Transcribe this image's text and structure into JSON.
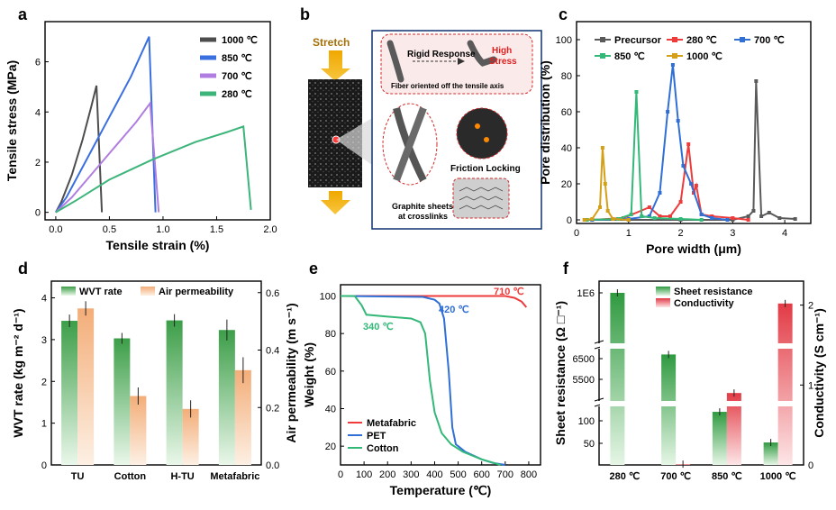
{
  "panels": {
    "a": "a",
    "b": "b",
    "c": "c",
    "d": "d",
    "e": "e",
    "f": "f"
  },
  "colors": {
    "c1000": "#4d4d4d",
    "c850": "#3a6fe0",
    "c700": "#b07ee0",
    "c280": "#3db57a",
    "prec": "#5a5a5a",
    "r280": "#ee3b3b",
    "b700": "#2f6fd6",
    "g850": "#33b878",
    "y1000": "#d4a017",
    "wvt": "#4aad56",
    "air": "#f5b88a",
    "sheet": "#3aa84a",
    "cond": "#e8414a"
  },
  "chart_data": [
    {
      "panel": "a",
      "type": "line",
      "xlabel": "Tensile strain (%)",
      "ylabel": "Tensile stress (MPa)",
      "xlim": [
        -0.1,
        2.0
      ],
      "ylim": [
        -0.3,
        7.6
      ],
      "xticks": [
        "0.0",
        "0.5",
        "1.0",
        "1.5",
        "2.0"
      ],
      "yticks": [
        "0",
        "2",
        "4",
        "6"
      ],
      "series": [
        {
          "name": "1000 ℃",
          "color": "#4d4d4d",
          "points": [
            [
              0,
              0
            ],
            [
              0.05,
              0.4
            ],
            [
              0.15,
              1.5
            ],
            [
              0.25,
              2.9
            ],
            [
              0.33,
              4.2
            ],
            [
              0.38,
              5.05
            ],
            [
              0.43,
              0
            ]
          ]
        },
        {
          "name": "850 ℃",
          "color": "#3a6fe0",
          "points": [
            [
              0,
              0
            ],
            [
              0.1,
              0.6
            ],
            [
              0.3,
              2.2
            ],
            [
              0.5,
              3.8
            ],
            [
              0.7,
              5.4
            ],
            [
              0.87,
              7.0
            ],
            [
              0.93,
              0
            ]
          ]
        },
        {
          "name": "700 ℃",
          "color": "#b07ee0",
          "points": [
            [
              0,
              0
            ],
            [
              0.15,
              0.6
            ],
            [
              0.35,
              1.6
            ],
            [
              0.55,
              2.6
            ],
            [
              0.75,
              3.6
            ],
            [
              0.88,
              4.35
            ],
            [
              0.96,
              0
            ]
          ]
        },
        {
          "name": "280 ℃",
          "color": "#3db57a",
          "points": [
            [
              0,
              0
            ],
            [
              0.2,
              0.5
            ],
            [
              0.5,
              1.3
            ],
            [
              0.9,
              2.1
            ],
            [
              1.3,
              2.8
            ],
            [
              1.6,
              3.2
            ],
            [
              1.75,
              3.42
            ],
            [
              1.82,
              0.1
            ]
          ]
        }
      ]
    },
    {
      "panel": "c",
      "type": "line",
      "xlabel": "Pore width (μm)",
      "ylabel": "Pore distribution (%)",
      "xlim": [
        0,
        4.5
      ],
      "ylim": [
        -2,
        110
      ],
      "xticks": [
        "0",
        "1",
        "2",
        "3",
        "4"
      ],
      "yticks": [
        "0",
        "20",
        "40",
        "60",
        "80",
        "100"
      ],
      "series": [
        {
          "name": "Precursor",
          "color": "#5a5a5a",
          "points": [
            [
              0.2,
              0
            ],
            [
              1,
              0
            ],
            [
              2,
              0
            ],
            [
              3,
              0
            ],
            [
              3.3,
              2
            ],
            [
              3.4,
              5
            ],
            [
              3.45,
              77
            ],
            [
              3.55,
              2
            ],
            [
              3.7,
              4
            ],
            [
              3.9,
              1
            ],
            [
              4.2,
              0.5
            ]
          ]
        },
        {
          "name": "280 ℃",
          "color": "#ee3b3b",
          "points": [
            [
              0.3,
              0
            ],
            [
              0.9,
              1
            ],
            [
              1.4,
              7
            ],
            [
              1.6,
              2
            ],
            [
              1.8,
              2
            ],
            [
              2.0,
              10
            ],
            [
              2.15,
              42
            ],
            [
              2.25,
              15
            ],
            [
              2.3,
              19
            ],
            [
              2.4,
              3
            ],
            [
              2.6,
              2
            ],
            [
              3.0,
              1
            ],
            [
              3.3,
              0
            ]
          ]
        },
        {
          "name": "700 ℃",
          "color": "#2f6fd6",
          "points": [
            [
              0.3,
              0
            ],
            [
              1.0,
              0.5
            ],
            [
              1.4,
              2
            ],
            [
              1.6,
              15
            ],
            [
              1.75,
              60
            ],
            [
              1.85,
              86
            ],
            [
              1.95,
              55
            ],
            [
              2.05,
              30
            ],
            [
              2.2,
              20
            ],
            [
              2.4,
              3
            ],
            [
              2.6,
              1
            ],
            [
              2.9,
              0
            ]
          ]
        },
        {
          "name": "850 ℃",
          "color": "#33b878",
          "points": [
            [
              0.2,
              0
            ],
            [
              0.8,
              0.5
            ],
            [
              1.05,
              3
            ],
            [
              1.15,
              71
            ],
            [
              1.25,
              2
            ],
            [
              1.5,
              1
            ],
            [
              2.0,
              0.5
            ],
            [
              2.4,
              0
            ]
          ]
        },
        {
          "name": "1000 ℃",
          "color": "#d4a017",
          "points": [
            [
              0.15,
              0
            ],
            [
              0.3,
              0.5
            ],
            [
              0.45,
              7
            ],
            [
              0.5,
              40
            ],
            [
              0.55,
              20
            ],
            [
              0.6,
              5
            ],
            [
              0.7,
              0.5
            ],
            [
              1.0,
              0
            ]
          ]
        }
      ]
    },
    {
      "panel": "d",
      "type": "bar",
      "categories": [
        "TU",
        "Cotton",
        "H-TU",
        "Metafabric"
      ],
      "ylabel": "WVT rate (kg m⁻² d⁻¹)",
      "y2label": "Air permeability (m s⁻¹)",
      "ylim": [
        0,
        4.4
      ],
      "y2lim": [
        0,
        0.64
      ],
      "yticks": [
        "0",
        "1",
        "2",
        "3",
        "4"
      ],
      "y2ticks": [
        "0.0",
        "0.2",
        "0.4",
        "0.6"
      ],
      "series": [
        {
          "name": "WVT rate",
          "color": "#4aad56",
          "axis": "left",
          "values": [
            3.45,
            3.03,
            3.46,
            3.23
          ],
          "err": [
            0.15,
            0.13,
            0.15,
            0.25
          ]
        },
        {
          "name": "Air permeability",
          "color": "#f5b88a",
          "axis": "right",
          "values": [
            0.545,
            0.24,
            0.195,
            0.33
          ],
          "err": [
            0.025,
            0.03,
            0.03,
            0.045
          ]
        }
      ]
    },
    {
      "panel": "e",
      "type": "line",
      "xlabel": "Temperature (℃)",
      "ylabel": "Weight (%)",
      "xlim": [
        0,
        850
      ],
      "ylim": [
        10,
        106
      ],
      "xticks": [
        "0",
        "100",
        "200",
        "300",
        "400",
        "500",
        "600",
        "700",
        "800"
      ],
      "yticks": [
        "20",
        "40",
        "60",
        "80",
        "100"
      ],
      "annotations": [
        "710 ℃",
        "420 ℃",
        "340 ℃"
      ],
      "series": [
        {
          "name": "Metafabric",
          "color": "#ee3b3b",
          "points": [
            [
              0,
              100
            ],
            [
              700,
              100
            ],
            [
              740,
              99
            ],
            [
              770,
              97
            ],
            [
              790,
              94
            ]
          ]
        },
        {
          "name": "PET",
          "color": "#2f6fd6",
          "points": [
            [
              0,
              100
            ],
            [
              350,
              99.5
            ],
            [
              400,
              98
            ],
            [
              420,
              96
            ],
            [
              440,
              88
            ],
            [
              460,
              60
            ],
            [
              475,
              30
            ],
            [
              490,
              21
            ],
            [
              530,
              17
            ],
            [
              600,
              13
            ],
            [
              650,
              11
            ],
            [
              700,
              10
            ]
          ]
        },
        {
          "name": "Cotton",
          "color": "#33b878",
          "points": [
            [
              0,
              100
            ],
            [
              60,
              100
            ],
            [
              90,
              95
            ],
            [
              110,
              90
            ],
            [
              200,
              89
            ],
            [
              300,
              88
            ],
            [
              340,
              86
            ],
            [
              360,
              80
            ],
            [
              380,
              55
            ],
            [
              400,
              38
            ],
            [
              430,
              27
            ],
            [
              470,
              21
            ],
            [
              520,
              17
            ],
            [
              600,
              13
            ],
            [
              680,
              10
            ]
          ]
        }
      ]
    },
    {
      "panel": "f",
      "type": "bar",
      "categories": [
        "280 ℃",
        "700 ℃",
        "850 ℃",
        "1000 ℃"
      ],
      "ylabel": "Sheet resistance (Ω □⁻¹)",
      "y2label": "Conductivity (S cm⁻¹)",
      "yticks_top": [
        "1E6"
      ],
      "yticks_mid": [
        "6500",
        "5500"
      ],
      "yticks_bot": [
        "50",
        "100"
      ],
      "y2ticks": [
        "0",
        "1",
        "2"
      ],
      "series": [
        {
          "name": "Sheet resistance",
          "color": "#3aa84a",
          "axis": "left",
          "values": [
            1000000,
            6700,
            130,
            55
          ]
        },
        {
          "name": "Conductivity",
          "color": "#e8414a",
          "axis": "right",
          "values": [
            0,
            0.01,
            0.9,
            2.02
          ],
          "y2lim": [
            0,
            2.3
          ]
        }
      ]
    }
  ],
  "schematic": {
    "stretch": "Stretch",
    "rigid": "Rigid Response",
    "high": "High",
    "stress": "Stress",
    "fiber_note": "Fiber oriented off the tensile axis",
    "friction": "Friction Locking",
    "graphite1": "Graphite sheets",
    "graphite2": "at crosslinks"
  }
}
